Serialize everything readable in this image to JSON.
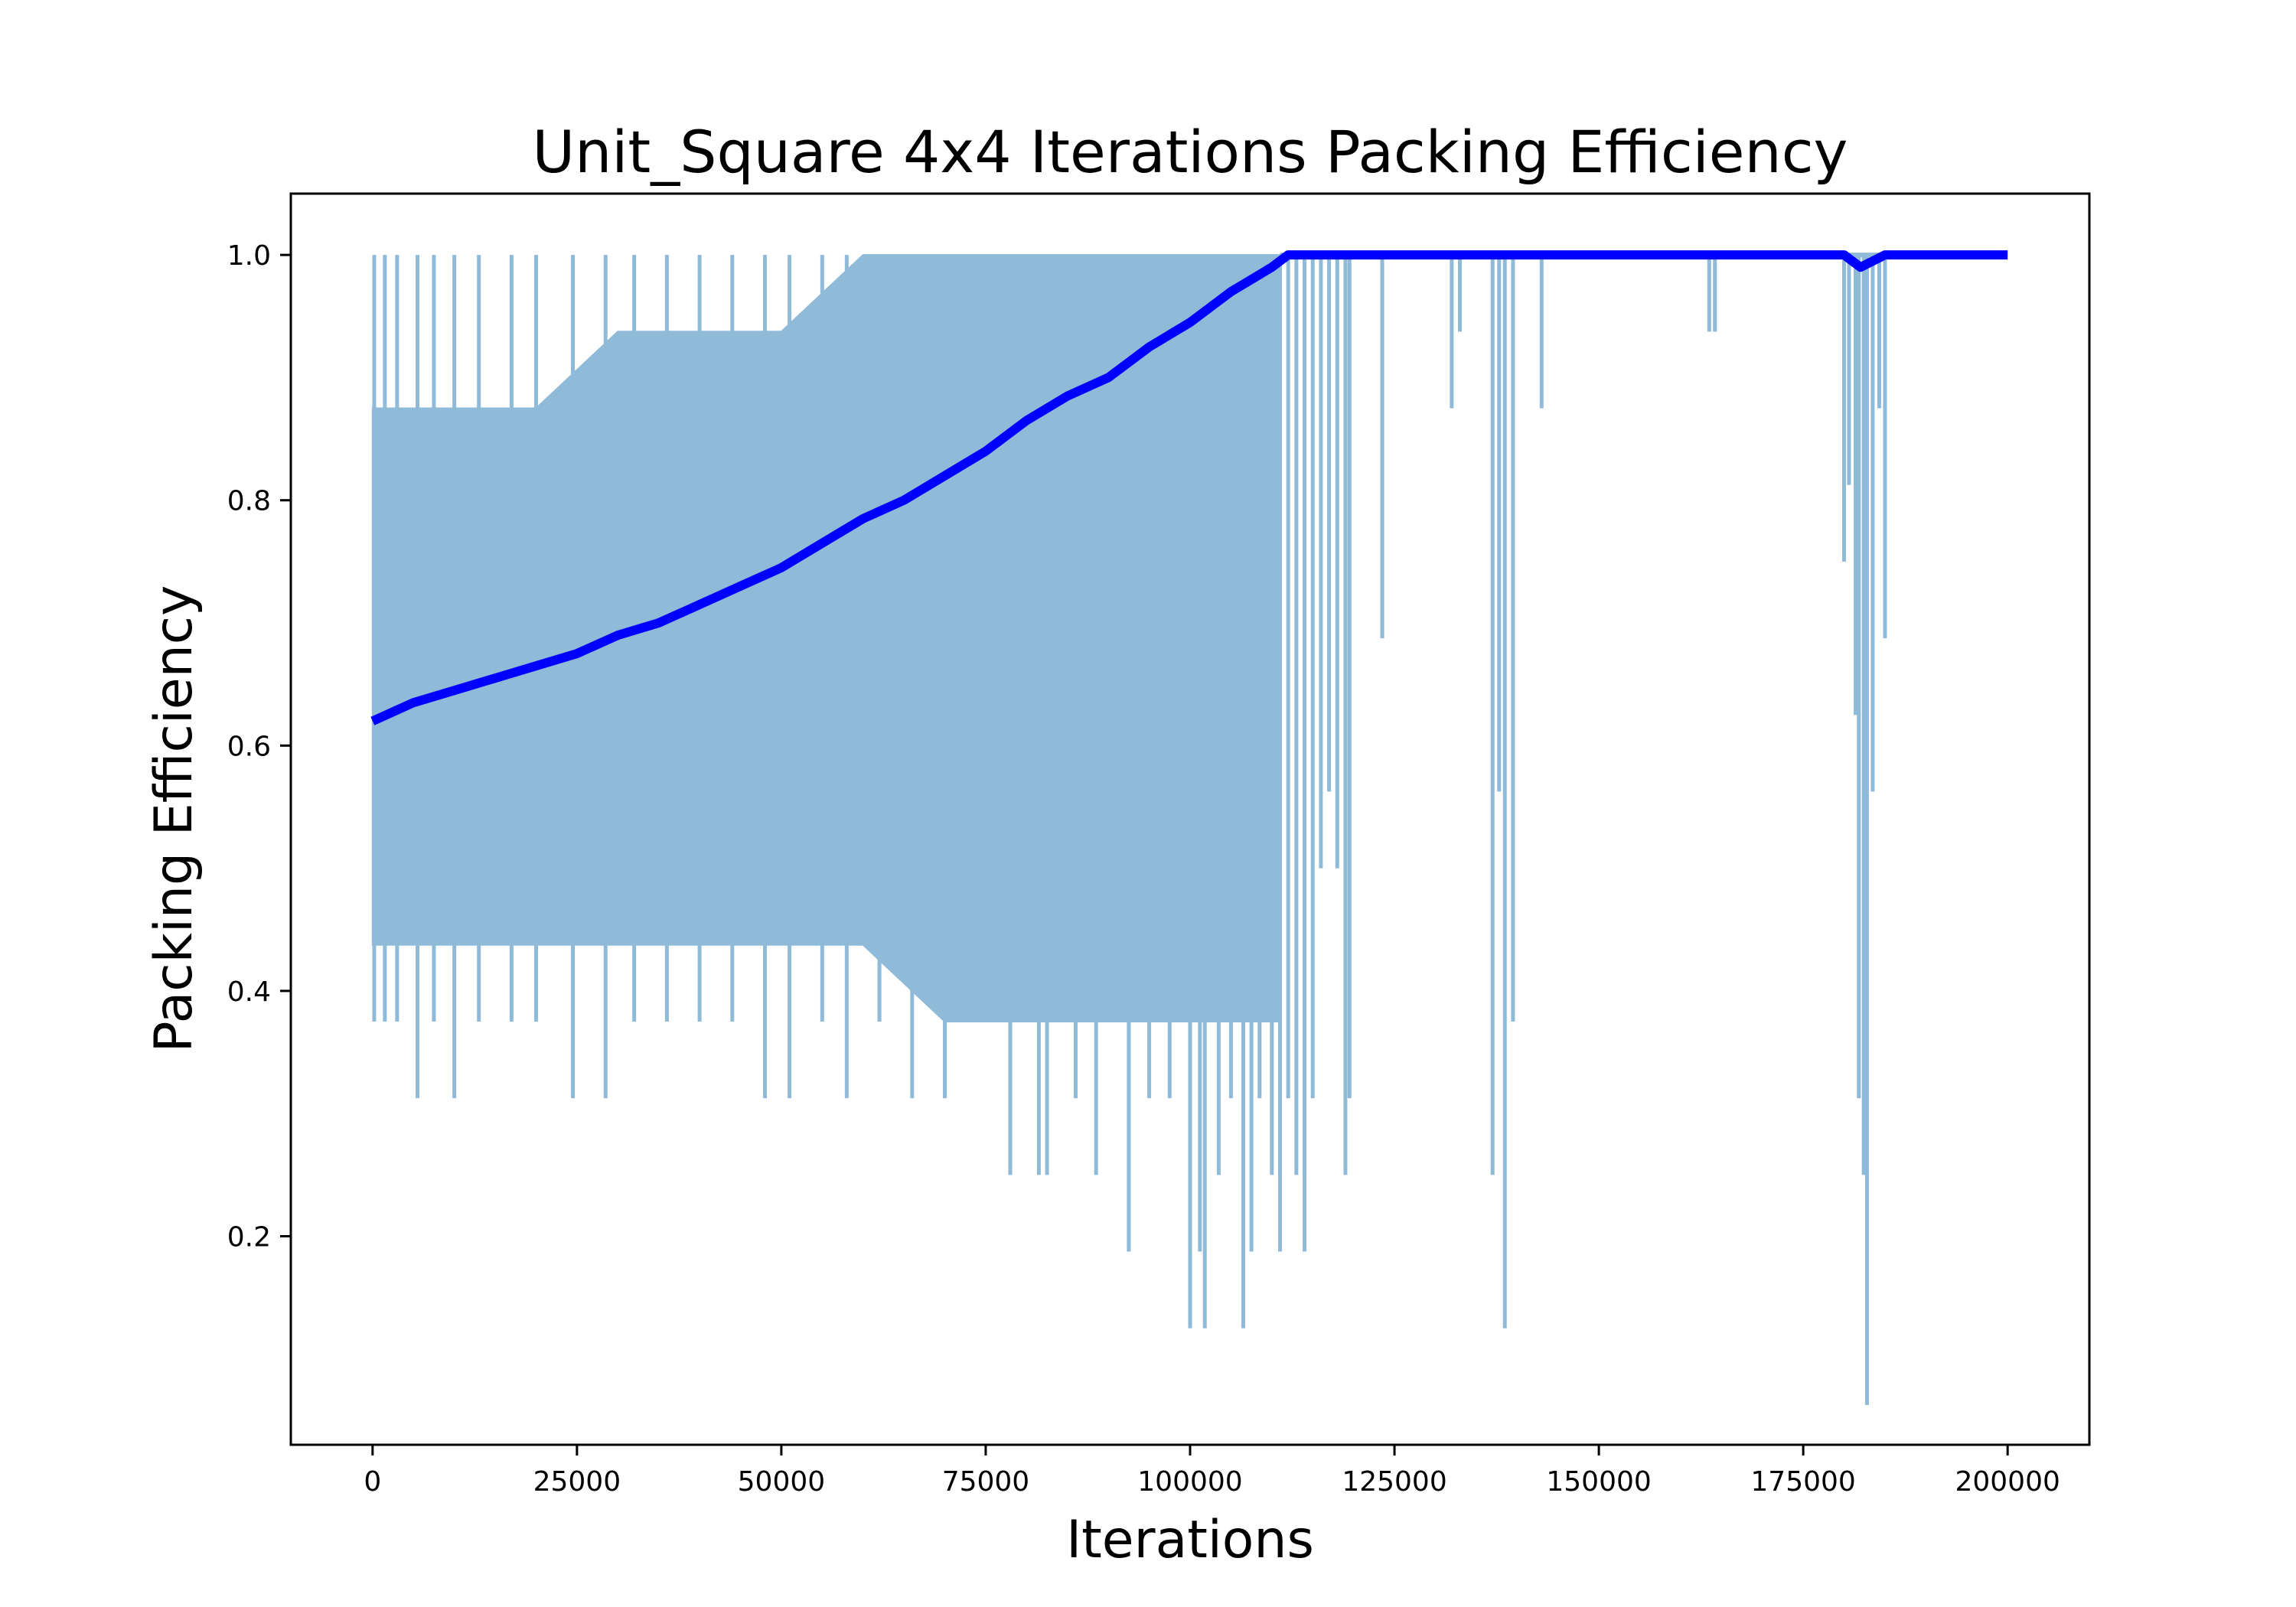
{
  "chart_data": {
    "type": "line",
    "title": "Unit_Square 4x4 Iterations Packing Efficiency",
    "xlabel": "Iterations",
    "ylabel": "Packing Efficiency",
    "xlim": [
      -10000,
      210000
    ],
    "ylim": [
      0.03,
      1.05
    ],
    "grid": false,
    "legend": "none",
    "xticks": [
      0,
      25000,
      50000,
      75000,
      100000,
      125000,
      150000,
      175000,
      200000
    ],
    "xtick_labels": [
      "0",
      "25000",
      "50000",
      "75000",
      "100000",
      "125000",
      "150000",
      "175000",
      "200000"
    ],
    "yticks": [
      0.2,
      0.4,
      0.6,
      0.8,
      1.0
    ],
    "ytick_labels": [
      "0.2",
      "0.4",
      "0.6",
      "0.8",
      "1.0"
    ],
    "series": [
      {
        "color": "#8fbad8",
        "band": {
          "x": [
            0,
            5000,
            10000,
            20000,
            30000,
            40000,
            50000,
            60000,
            70000,
            80000,
            90000,
            100000,
            105000,
            110000,
            111000
          ],
          "upper": [
            0.875,
            0.875,
            0.875,
            0.875,
            0.9375,
            0.9375,
            0.9375,
            1.0,
            1.0,
            1.0,
            1.0,
            1.0,
            1.0,
            1.0,
            1.0
          ],
          "lower": [
            0.4375,
            0.4375,
            0.4375,
            0.4375,
            0.4375,
            0.4375,
            0.4375,
            0.4375,
            0.375,
            0.375,
            0.375,
            0.375,
            0.375,
            0.375,
            0.375
          ]
        },
        "spikes": [
          {
            "x": 200,
            "y": 0.375
          },
          {
            "x": 1500,
            "y": 0.375
          },
          {
            "x": 3000,
            "y": 0.375
          },
          {
            "x": 5500,
            "y": 0.3125
          },
          {
            "x": 7500,
            "y": 0.375
          },
          {
            "x": 10000,
            "y": 0.3125
          },
          {
            "x": 13000,
            "y": 0.375
          },
          {
            "x": 17000,
            "y": 0.375
          },
          {
            "x": 20000,
            "y": 0.375
          },
          {
            "x": 24500,
            "y": 0.3125
          },
          {
            "x": 28500,
            "y": 0.3125
          },
          {
            "x": 32000,
            "y": 0.375
          },
          {
            "x": 36000,
            "y": 0.375
          },
          {
            "x": 40000,
            "y": 0.375
          },
          {
            "x": 44000,
            "y": 0.375
          },
          {
            "x": 48000,
            "y": 0.3125
          },
          {
            "x": 51000,
            "y": 0.3125
          },
          {
            "x": 55000,
            "y": 0.375
          },
          {
            "x": 58000,
            "y": 0.3125
          },
          {
            "x": 62000,
            "y": 0.375
          },
          {
            "x": 66000,
            "y": 0.3125
          },
          {
            "x": 70000,
            "y": 0.3125
          },
          {
            "x": 73000,
            "y": 0.375
          },
          {
            "x": 78000,
            "y": 0.25
          },
          {
            "x": 81500,
            "y": 0.25
          },
          {
            "x": 82500,
            "y": 0.25
          },
          {
            "x": 86000,
            "y": 0.3125
          },
          {
            "x": 88500,
            "y": 0.25
          },
          {
            "x": 92500,
            "y": 0.1875
          },
          {
            "x": 95000,
            "y": 0.3125
          },
          {
            "x": 97500,
            "y": 0.3125
          },
          {
            "x": 100000,
            "y": 0.125
          },
          {
            "x": 101200,
            "y": 0.1875
          },
          {
            "x": 101800,
            "y": 0.125
          },
          {
            "x": 103500,
            "y": 0.25
          },
          {
            "x": 105000,
            "y": 0.3125
          },
          {
            "x": 106500,
            "y": 0.125
          },
          {
            "x": 107500,
            "y": 0.1875
          },
          {
            "x": 108500,
            "y": 0.3125
          },
          {
            "x": 110000,
            "y": 0.25
          },
          {
            "x": 111000,
            "y": 0.1875
          },
          {
            "x": 112000,
            "y": 0.3125
          },
          {
            "x": 113000,
            "y": 0.25
          },
          {
            "x": 114000,
            "y": 0.1875
          },
          {
            "x": 115000,
            "y": 0.3125
          },
          {
            "x": 116000,
            "y": 0.5
          },
          {
            "x": 117000,
            "y": 0.5625
          },
          {
            "x": 118000,
            "y": 0.5
          },
          {
            "x": 119000,
            "y": 0.25
          },
          {
            "x": 119500,
            "y": 0.3125
          },
          {
            "x": 123500,
            "y": 0.6875
          },
          {
            "x": 132000,
            "y": 0.875
          },
          {
            "x": 133000,
            "y": 0.9375
          },
          {
            "x": 137000,
            "y": 0.25
          },
          {
            "x": 137800,
            "y": 0.5625
          },
          {
            "x": 138500,
            "y": 0.125
          },
          {
            "x": 139500,
            "y": 0.375
          },
          {
            "x": 143000,
            "y": 0.875
          },
          {
            "x": 163500,
            "y": 0.9375
          },
          {
            "x": 164200,
            "y": 0.9375
          },
          {
            "x": 180000,
            "y": 0.75
          },
          {
            "x": 180600,
            "y": 0.8125
          },
          {
            "x": 181400,
            "y": 0.625
          },
          {
            "x": 181800,
            "y": 0.3125
          },
          {
            "x": 182400,
            "y": 0.25
          },
          {
            "x": 182800,
            "y": 0.0625
          },
          {
            "x": 183500,
            "y": 0.5625
          },
          {
            "x": 184300,
            "y": 0.875
          },
          {
            "x": 185000,
            "y": 0.6875
          }
        ],
        "x": [
          111000,
          200000
        ],
        "values": [
          1.0,
          1.0
        ]
      },
      {
        "color": "#0000ff",
        "x": [
          0,
          5000,
          10000,
          15000,
          20000,
          25000,
          30000,
          35000,
          40000,
          45000,
          50000,
          55000,
          60000,
          65000,
          70000,
          75000,
          80000,
          85000,
          90000,
          95000,
          100000,
          105000,
          110000,
          112000,
          120000,
          180000,
          182000,
          185000,
          200000
        ],
        "values": [
          0.62,
          0.635,
          0.645,
          0.655,
          0.665,
          0.675,
          0.69,
          0.7,
          0.715,
          0.73,
          0.745,
          0.765,
          0.785,
          0.8,
          0.82,
          0.84,
          0.865,
          0.885,
          0.9,
          0.925,
          0.945,
          0.97,
          0.99,
          1.0,
          1.0,
          1.0,
          0.99,
          1.0,
          1.0
        ]
      }
    ]
  }
}
